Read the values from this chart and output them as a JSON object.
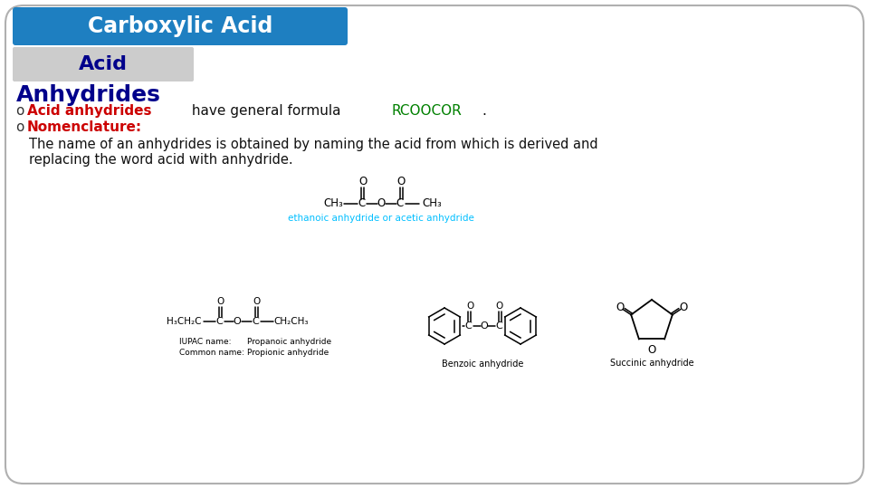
{
  "bg_color": "#ffffff",
  "border_color": "#b0b0b0",
  "title_bg_color": "#1e7fc1",
  "title_text": "Carboxylic Acid",
  "title_text_color": "#ffffff",
  "subtitle_bg_color": "#cccccc",
  "subtitle1_text": "Acid",
  "subtitle2_text": "Anhydrides",
  "subtitle_text_color": "#00008B",
  "bullet1_red": "Acid anhydrides",
  "bullet1_black": " have general formula ",
  "bullet1_green": "RCOOCOR",
  "bullet1_dot": ".",
  "bullet2_text": "Nomenclature:",
  "bullet2_color": "#cc0000",
  "body_line1": "The name of an anhydrides is obtained by naming the acid from which is derived and",
  "body_line2": "replacing the word acid with anhydride.",
  "body_text_color": "#111111",
  "label_color": "#00bfff",
  "label_acetic": "ethanoic anhydride or acetic anhydride",
  "label_propanoic": "Propanoic anhydride",
  "label_propionic": "Propionic anhydride",
  "label_benzoic": "Benzoic anhydride",
  "label_succinic": "Succinic anhydride"
}
